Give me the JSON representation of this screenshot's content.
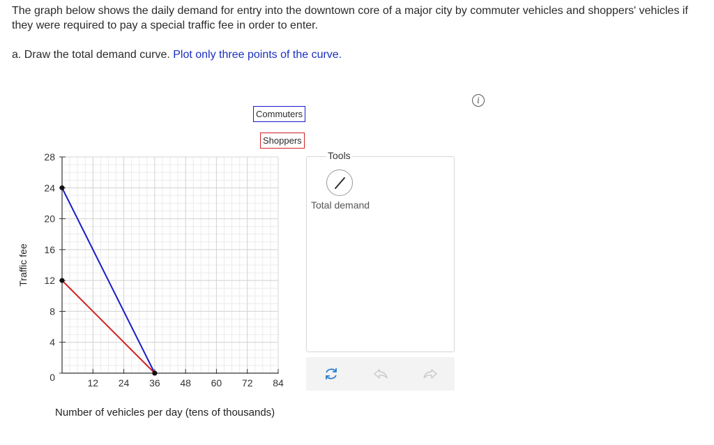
{
  "question": {
    "text": "The graph below shows the daily demand for entry into the downtown core of a major city by commuter vehicles and shoppers' vehicles if they were required to pay a special traffic fee in order to enter.",
    "part_label": "a. Draw the total demand curve.",
    "instruction": "Plot only three points of the curve."
  },
  "legend": {
    "commuters": "Commuters",
    "shoppers": "Shoppers"
  },
  "axes": {
    "ylabel": "Traffic fee",
    "xlabel": "Number of vehicles per day (tens of thousands)"
  },
  "tools": {
    "title": "Tools",
    "items": [
      {
        "label": "Total demand",
        "icon": "line-tool-icon"
      }
    ]
  },
  "actions": [
    "reset-icon",
    "undo-icon",
    "redo-icon"
  ],
  "colors": {
    "commuters": "#1a1ac8",
    "shoppers": "#d02020",
    "instruction": "#1a2fbf"
  },
  "chart_data": {
    "type": "line",
    "xlim": [
      0,
      84
    ],
    "ylim": [
      0,
      28
    ],
    "x_ticks": [
      0,
      12,
      24,
      36,
      48,
      60,
      72,
      84
    ],
    "x_tick_labels": [
      "12",
      "24",
      "36",
      "48",
      "60",
      "72",
      "84"
    ],
    "y_ticks": [
      0,
      4,
      8,
      12,
      16,
      20,
      24,
      28
    ],
    "y_tick_labels": [
      "0",
      "4",
      "8",
      "12",
      "16",
      "20",
      "24",
      "28"
    ],
    "grid": true,
    "series": [
      {
        "name": "Commuters",
        "color": "#1a1ac8",
        "points": [
          [
            0,
            24
          ],
          [
            36,
            0
          ]
        ]
      },
      {
        "name": "Shoppers",
        "color": "#d02020",
        "points": [
          [
            0,
            12
          ],
          [
            36,
            0
          ]
        ]
      }
    ]
  }
}
